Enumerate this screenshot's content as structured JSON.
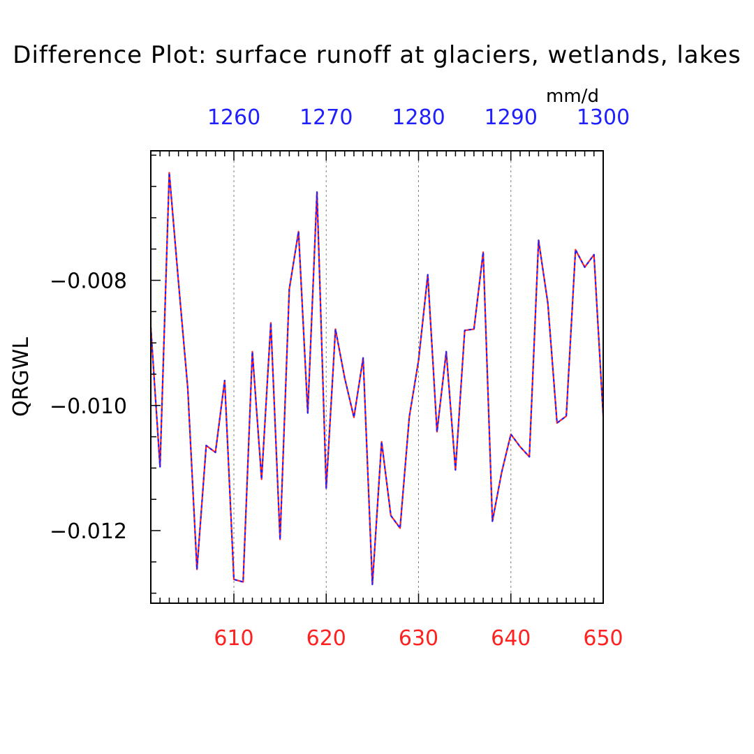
{
  "chart_data": {
    "type": "line",
    "title": "Difference Plot: surface runoff at glaciers, wetlands, lakes",
    "ylabel": "QRGWL",
    "units": "mm/d",
    "xlim": [
      601,
      650
    ],
    "ylim": [
      -0.01316,
      -0.00593
    ],
    "x2lim": [
      1251,
      1300
    ],
    "x_ticks": [
      610,
      620,
      630,
      640,
      650
    ],
    "x_tick_labels": [
      "610",
      "620",
      "630",
      "640",
      "650"
    ],
    "x2_ticks": [
      1260,
      1270,
      1280,
      1290,
      1300
    ],
    "x2_tick_labels": [
      "1260",
      "1270",
      "1280",
      "1290",
      "1300"
    ],
    "y_ticks": [
      -0.012,
      -0.01,
      -0.008
    ],
    "y_tick_labels": [
      "−0.012",
      "−0.010",
      "−0.008"
    ],
    "y_minor_step": 0.0005,
    "x_minor_step": 1,
    "grid": "vertical-dashed",
    "colors": {
      "bottom_axis": "#ff2020",
      "top_axis": "#2020ff",
      "series_a": "#ff2020",
      "series_b": "#2020ff",
      "grid": "#808080",
      "frame": "#000000"
    },
    "x": [
      601,
      602,
      603,
      604,
      605,
      606,
      607,
      608,
      609,
      610,
      611,
      612,
      613,
      614,
      615,
      616,
      617,
      618,
      619,
      620,
      621,
      622,
      623,
      624,
      625,
      626,
      627,
      628,
      629,
      630,
      631,
      632,
      633,
      634,
      635,
      636,
      637,
      638,
      639,
      640,
      641,
      642,
      643,
      644,
      645,
      646,
      647,
      648,
      649,
      650
    ],
    "series": [
      {
        "values": [
          -0.00875,
          -0.01098,
          -0.00628,
          -0.00803,
          -0.00972,
          -0.01262,
          -0.01064,
          -0.01075,
          -0.0096,
          -0.01278,
          -0.01282,
          -0.00914,
          -0.01118,
          -0.00868,
          -0.01214,
          -0.00814,
          -0.00722,
          -0.01012,
          -0.00659,
          -0.01132,
          -0.00878,
          -0.00956,
          -0.01019,
          -0.00924,
          -0.01286,
          -0.01058,
          -0.01176,
          -0.01196,
          -0.01018,
          -0.00928,
          -0.00791,
          -0.01042,
          -0.00914,
          -0.01103,
          -0.0088,
          -0.00878,
          -0.00755,
          -0.01185,
          -0.01107,
          -0.01046,
          -0.01066,
          -0.01082,
          -0.00736,
          -0.00836,
          -0.01028,
          -0.01017,
          -0.00751,
          -0.00779,
          -0.00759,
          -0.01017
        ]
      },
      {
        "values": [
          -0.00875,
          -0.01098,
          -0.00628,
          -0.00803,
          -0.00972,
          -0.01262,
          -0.01064,
          -0.01075,
          -0.0096,
          -0.01278,
          -0.01282,
          -0.00914,
          -0.01118,
          -0.00868,
          -0.01214,
          -0.00814,
          -0.00722,
          -0.01012,
          -0.00659,
          -0.01132,
          -0.00878,
          -0.00956,
          -0.01019,
          -0.00924,
          -0.01286,
          -0.01058,
          -0.01176,
          -0.01196,
          -0.01018,
          -0.00928,
          -0.00791,
          -0.01042,
          -0.00914,
          -0.01103,
          -0.0088,
          -0.00878,
          -0.00755,
          -0.01185,
          -0.01107,
          -0.01046,
          -0.01066,
          -0.01082,
          -0.00736,
          -0.00836,
          -0.01028,
          -0.01017,
          -0.00751,
          -0.00779,
          -0.00759,
          -0.01017
        ]
      }
    ]
  }
}
